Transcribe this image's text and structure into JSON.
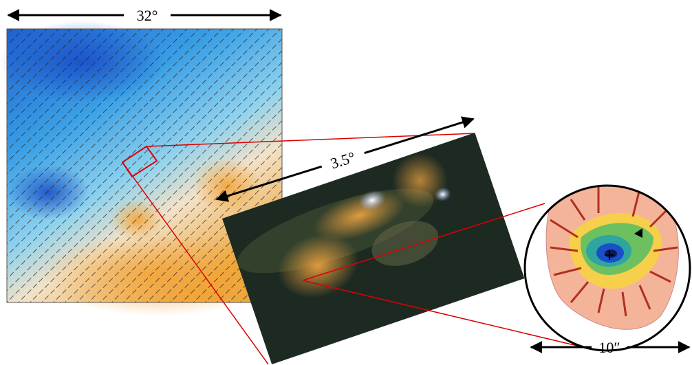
{
  "scale_labels": {
    "map_width": "32°",
    "zoom_width": "3.5°",
    "core_width": "10″"
  }
}
